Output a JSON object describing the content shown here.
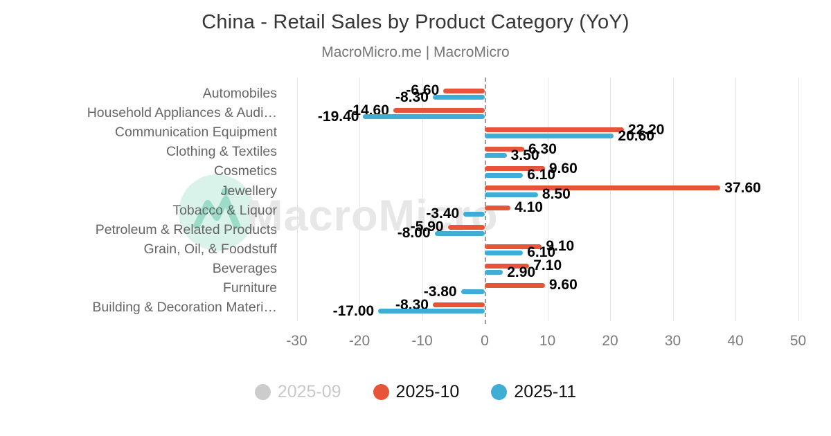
{
  "header": {
    "title": "China - Retail Sales by Product Category (YoY)",
    "subtitle": "MacroMicro.me | MacroMicro"
  },
  "watermark": {
    "text": "MacroMicro"
  },
  "legend": [
    {
      "label": "2025-09",
      "color": "#cccccc",
      "disabled": true
    },
    {
      "label": "2025-10",
      "color": "#e8543a",
      "disabled": false
    },
    {
      "label": "2025-11",
      "color": "#3fadd4",
      "disabled": false
    }
  ],
  "chart_data": {
    "type": "bar",
    "orientation": "horizontal",
    "title": "China - Retail Sales by Product Category (YoY)",
    "subtitle": "MacroMicro.me | MacroMicro",
    "categories": [
      "Automobiles",
      "Household Appliances & Audi…",
      "Communication Equipment",
      "Clothing & Textiles",
      "Cosmetics",
      "Jewellery",
      "Tobacco & Liquor",
      "Petroleum & Related Products",
      "Grain, Oil, & Foodstuff",
      "Beverages",
      "Furniture",
      "Building & Decoration Materi…"
    ],
    "series": [
      {
        "name": "2025-09",
        "color": "#cccccc",
        "visible": false,
        "values": [
          null,
          null,
          null,
          null,
          null,
          null,
          null,
          null,
          null,
          null,
          null,
          null
        ]
      },
      {
        "name": "2025-10",
        "color": "#e8543a",
        "visible": true,
        "values": [
          -6.6,
          -14.6,
          22.2,
          6.3,
          9.6,
          37.6,
          4.1,
          -5.9,
          9.1,
          7.1,
          9.6,
          -8.3
        ]
      },
      {
        "name": "2025-11",
        "color": "#3fadd4",
        "visible": true,
        "values": [
          -8.3,
          -19.4,
          20.6,
          3.5,
          6.1,
          8.5,
          -3.4,
          -8.0,
          6.1,
          2.9,
          -3.8,
          -17.0
        ]
      }
    ],
    "xticks": [
      -30,
      -20,
      -10,
      0,
      10,
      20,
      30,
      40,
      50
    ],
    "xlim": [
      -32,
      51
    ],
    "value_label_decimals": 2,
    "grid": true,
    "legend_position": "bottom"
  }
}
